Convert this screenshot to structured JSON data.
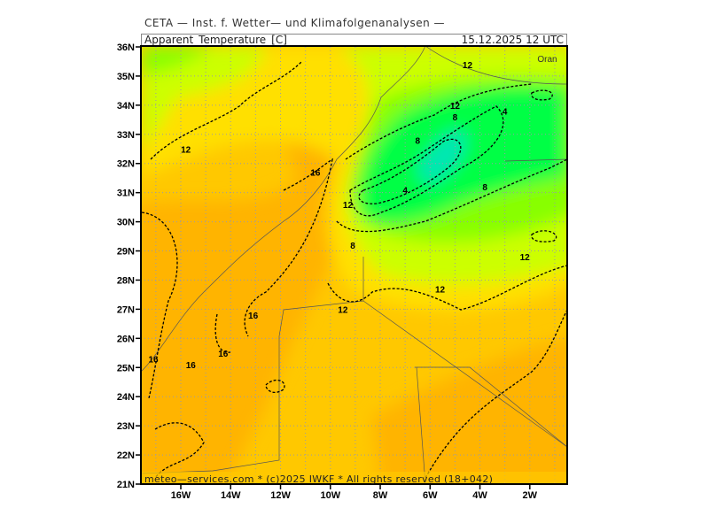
{
  "header": {
    "institute": "CETA — Inst. f. Wetter— und Klimafolgenanalysen —",
    "parameter": "Apparent_Temperature_[C]",
    "valid_time": "15.12.2025  12 UTC"
  },
  "footer": {
    "credit": "meteo—services.com * (c)2025 IWKF * All rights reserved (18+042)"
  },
  "map": {
    "lon_range": [
      -17.6,
      -0.5
    ],
    "lat_range": [
      21,
      36
    ],
    "lat_ticks": [
      {
        "value": 36,
        "label": "36N"
      },
      {
        "value": 35,
        "label": "35N"
      },
      {
        "value": 34,
        "label": "34N"
      },
      {
        "value": 33,
        "label": "33N"
      },
      {
        "value": 32,
        "label": "32N"
      },
      {
        "value": 31,
        "label": "31N"
      },
      {
        "value": 30,
        "label": "30N"
      },
      {
        "value": 29,
        "label": "29N"
      },
      {
        "value": 28,
        "label": "28N"
      },
      {
        "value": 27,
        "label": "27N"
      },
      {
        "value": 26,
        "label": "26N"
      },
      {
        "value": 25,
        "label": "25N"
      },
      {
        "value": 24,
        "label": "24N"
      },
      {
        "value": 23,
        "label": "23N"
      },
      {
        "value": 22,
        "label": "22N"
      },
      {
        "value": 21,
        "label": "21N"
      }
    ],
    "lon_ticks": [
      {
        "value": -16,
        "label": "16W"
      },
      {
        "value": -14,
        "label": "14W"
      },
      {
        "value": -12,
        "label": "12W"
      },
      {
        "value": -10,
        "label": "10W"
      },
      {
        "value": -8,
        "label": "8W"
      },
      {
        "value": -6,
        "label": "6W"
      },
      {
        "value": -4,
        "label": "4W"
      },
      {
        "value": -2,
        "label": "2W"
      }
    ],
    "city": {
      "name": "Oran",
      "lon": -1.3,
      "lat": 35.6
    },
    "colors": {
      "orange": "#ffb400",
      "light_orange": "#ffc800",
      "yellow": "#ffe000",
      "yellow_green": "#ccff00",
      "light_green": "#88ff00",
      "green": "#00ff44",
      "cyan": "#00e6b4"
    },
    "contour_labels": [
      {
        "text": "12",
        "lon": -4.5,
        "lat": 35.4
      },
      {
        "text": "12",
        "lon": -15.8,
        "lat": 32.5
      },
      {
        "text": "12",
        "lon": -5.0,
        "lat": 34.0
      },
      {
        "text": "8",
        "lon": -5.0,
        "lat": 33.6
      },
      {
        "text": "4",
        "lon": -3.0,
        "lat": 33.8
      },
      {
        "text": "8",
        "lon": -6.5,
        "lat": 32.8
      },
      {
        "text": "16",
        "lon": -10.6,
        "lat": 31.7
      },
      {
        "text": "12",
        "lon": -9.3,
        "lat": 30.6
      },
      {
        "text": "4",
        "lon": -7.0,
        "lat": 31.1
      },
      {
        "text": "8",
        "lon": -3.8,
        "lat": 31.2
      },
      {
        "text": "8",
        "lon": -9.1,
        "lat": 29.2
      },
      {
        "text": "12",
        "lon": -2.2,
        "lat": 28.8
      },
      {
        "text": "12",
        "lon": -5.6,
        "lat": 27.7
      },
      {
        "text": "12",
        "lon": -9.5,
        "lat": 27.0
      },
      {
        "text": "16",
        "lon": -13.1,
        "lat": 26.8
      },
      {
        "text": "16",
        "lon": -14.3,
        "lat": 25.5
      },
      {
        "text": "16",
        "lon": -17.1,
        "lat": 25.3
      },
      {
        "text": "16",
        "lon": -15.6,
        "lat": 25.1
      }
    ]
  }
}
